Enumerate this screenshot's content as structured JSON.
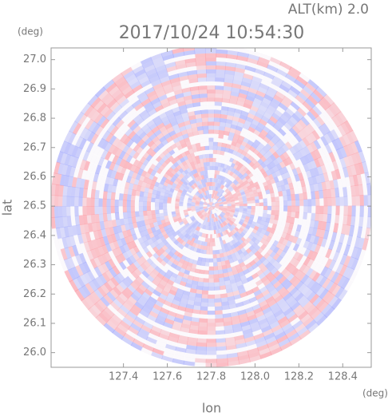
{
  "chart_data": {
    "type": "radar-ppi",
    "title": "2017/10/24 10:54:30",
    "subtitle": "ALT(km) 2.0",
    "xlabel": "lon",
    "ylabel": "lat",
    "xunit": "(deg)",
    "yunit": "(deg)",
    "xlim": [
      127.07,
      128.53
    ],
    "ylim": [
      25.95,
      27.04
    ],
    "xticks": [
      127.4,
      127.6,
      127.8,
      {
        "value": 128,
        "label": "128.0"
      },
      128.2,
      128.4
    ],
    "yticks": [
      {
        "value": 26,
        "label": "26.0"
      },
      26.1,
      26.2,
      26.3,
      26.4,
      26.5,
      26.6,
      26.7,
      26.8,
      26.9,
      {
        "value": 27,
        "label": "27.0"
      }
    ],
    "center": [
      127.8,
      26.5
    ]
  }
}
